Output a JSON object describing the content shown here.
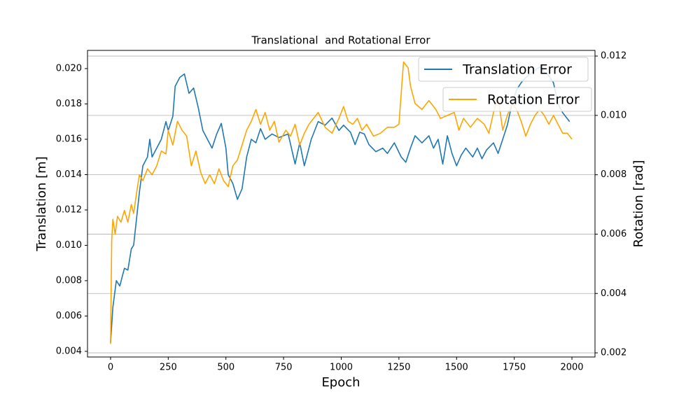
{
  "chart_data": {
    "type": "line",
    "title": "Translational  and Rotational Error",
    "xlabel": "Epoch",
    "ylabel": "Translation [m]",
    "y2label": "Rotation [rad]",
    "xlim": [
      -100,
      2100
    ],
    "ylim": [
      0.00368,
      0.02103
    ],
    "y2lim": [
      0.00186,
      0.01219
    ],
    "xticks": [
      0,
      250,
      500,
      750,
      1000,
      1250,
      1500,
      1750,
      2000
    ],
    "yticks": [
      0.004,
      0.006,
      0.008,
      {
        "value": 0.01,
        "label": "0.010"
      },
      0.012,
      0.014,
      0.016,
      0.018,
      {
        "value": 0.02,
        "label": "0.020"
      }
    ],
    "y2ticks": [
      0.002,
      0.004,
      0.006,
      0.008,
      {
        "value": 0.01,
        "label": "0.010"
      },
      0.012
    ],
    "grid": "y2",
    "legend": "upper right",
    "series": [
      {
        "name": "Translation Error",
        "color": "#1f77b4",
        "axis": "y",
        "x": [
          0,
          10,
          25,
          40,
          50,
          60,
          75,
          90,
          100,
          110,
          125,
          140,
          160,
          170,
          180,
          200,
          220,
          240,
          250,
          270,
          280,
          300,
          320,
          340,
          360,
          380,
          400,
          420,
          440,
          460,
          480,
          500,
          510,
          530,
          550,
          570,
          590,
          610,
          630,
          650,
          670,
          700,
          730,
          750,
          770,
          800,
          820,
          840,
          870,
          900,
          930,
          960,
          990,
          1010,
          1040,
          1060,
          1080,
          1100,
          1120,
          1150,
          1180,
          1200,
          1230,
          1260,
          1280,
          1300,
          1320,
          1350,
          1380,
          1400,
          1420,
          1440,
          1460,
          1480,
          1500,
          1520,
          1540,
          1570,
          1590,
          1610,
          1630,
          1660,
          1680,
          1700,
          1720,
          1740,
          1760,
          1780,
          1800,
          1830,
          1860,
          1880,
          1900,
          1920,
          1940,
          1960,
          1990
        ],
        "values": [
          0.0045,
          0.0065,
          0.008,
          0.0077,
          0.0082,
          0.0087,
          0.0086,
          0.0098,
          0.01,
          0.0112,
          0.013,
          0.0145,
          0.015,
          0.016,
          0.015,
          0.0155,
          0.016,
          0.017,
          0.0165,
          0.0173,
          0.019,
          0.0195,
          0.0197,
          0.0186,
          0.0189,
          0.0178,
          0.0165,
          0.016,
          0.0155,
          0.0163,
          0.0169,
          0.0155,
          0.014,
          0.0135,
          0.0126,
          0.0132,
          0.015,
          0.016,
          0.0158,
          0.0166,
          0.016,
          0.0163,
          0.0161,
          0.0162,
          0.0163,
          0.0146,
          0.0158,
          0.0145,
          0.016,
          0.017,
          0.0168,
          0.0172,
          0.0165,
          0.0168,
          0.0164,
          0.0157,
          0.0164,
          0.0163,
          0.0157,
          0.0153,
          0.0155,
          0.0152,
          0.0158,
          0.015,
          0.0147,
          0.0155,
          0.0162,
          0.0158,
          0.0162,
          0.0155,
          0.016,
          0.0146,
          0.0162,
          0.0152,
          0.0145,
          0.0151,
          0.0155,
          0.015,
          0.0155,
          0.0149,
          0.0154,
          0.0158,
          0.0152,
          0.016,
          0.0168,
          0.018,
          0.0188,
          0.0192,
          0.0195,
          0.0198,
          0.0201,
          0.0198,
          0.0196,
          0.0192,
          0.018,
          0.0175,
          0.017
        ]
      },
      {
        "name": "Rotation Error",
        "color": "#ffa500",
        "axis": "y2",
        "x": [
          0,
          5,
          10,
          20,
          30,
          45,
          60,
          75,
          90,
          100,
          115,
          125,
          140,
          160,
          180,
          200,
          220,
          240,
          250,
          270,
          290,
          310,
          330,
          350,
          370,
          390,
          410,
          430,
          450,
          470,
          490,
          510,
          530,
          550,
          570,
          590,
          610,
          630,
          650,
          670,
          690,
          710,
          730,
          760,
          780,
          800,
          820,
          840,
          860,
          880,
          900,
          930,
          960,
          990,
          1010,
          1030,
          1050,
          1070,
          1090,
          1110,
          1140,
          1170,
          1200,
          1230,
          1250,
          1270,
          1290,
          1300,
          1320,
          1350,
          1380,
          1410,
          1430,
          1460,
          1490,
          1510,
          1530,
          1560,
          1590,
          1620,
          1640,
          1660,
          1680,
          1700,
          1720,
          1740,
          1760,
          1780,
          1800,
          1820,
          1840,
          1860,
          1880,
          1900,
          1920,
          1940,
          1960,
          1980,
          2000
        ],
        "values": [
          0.0023,
          0.0058,
          0.0065,
          0.006,
          0.0066,
          0.0064,
          0.0068,
          0.0064,
          0.007,
          0.0067,
          0.0075,
          0.008,
          0.0078,
          0.0082,
          0.008,
          0.0083,
          0.0088,
          0.0087,
          0.0095,
          0.009,
          0.0098,
          0.0095,
          0.0093,
          0.0083,
          0.0088,
          0.0081,
          0.0077,
          0.008,
          0.0077,
          0.0082,
          0.0078,
          0.0076,
          0.0083,
          0.0085,
          0.009,
          0.0095,
          0.0098,
          0.0102,
          0.0097,
          0.0101,
          0.0095,
          0.0098,
          0.0091,
          0.0095,
          0.0093,
          0.0097,
          0.009,
          0.0094,
          0.0097,
          0.0099,
          0.0101,
          0.0096,
          0.0094,
          0.0099,
          0.0103,
          0.0098,
          0.0097,
          0.0099,
          0.0095,
          0.0097,
          0.0093,
          0.0094,
          0.0096,
          0.0096,
          0.0097,
          0.0118,
          0.0116,
          0.011,
          0.0104,
          0.0102,
          0.0105,
          0.0102,
          0.0099,
          0.01,
          0.0101,
          0.0095,
          0.0099,
          0.0096,
          0.0099,
          0.0097,
          0.0094,
          0.0101,
          0.0106,
          0.0095,
          0.01,
          0.0104,
          0.0102,
          0.0098,
          0.0093,
          0.0097,
          0.01,
          0.0102,
          0.01,
          0.0097,
          0.01,
          0.0097,
          0.0094,
          0.0094,
          0.0092
        ]
      }
    ]
  }
}
